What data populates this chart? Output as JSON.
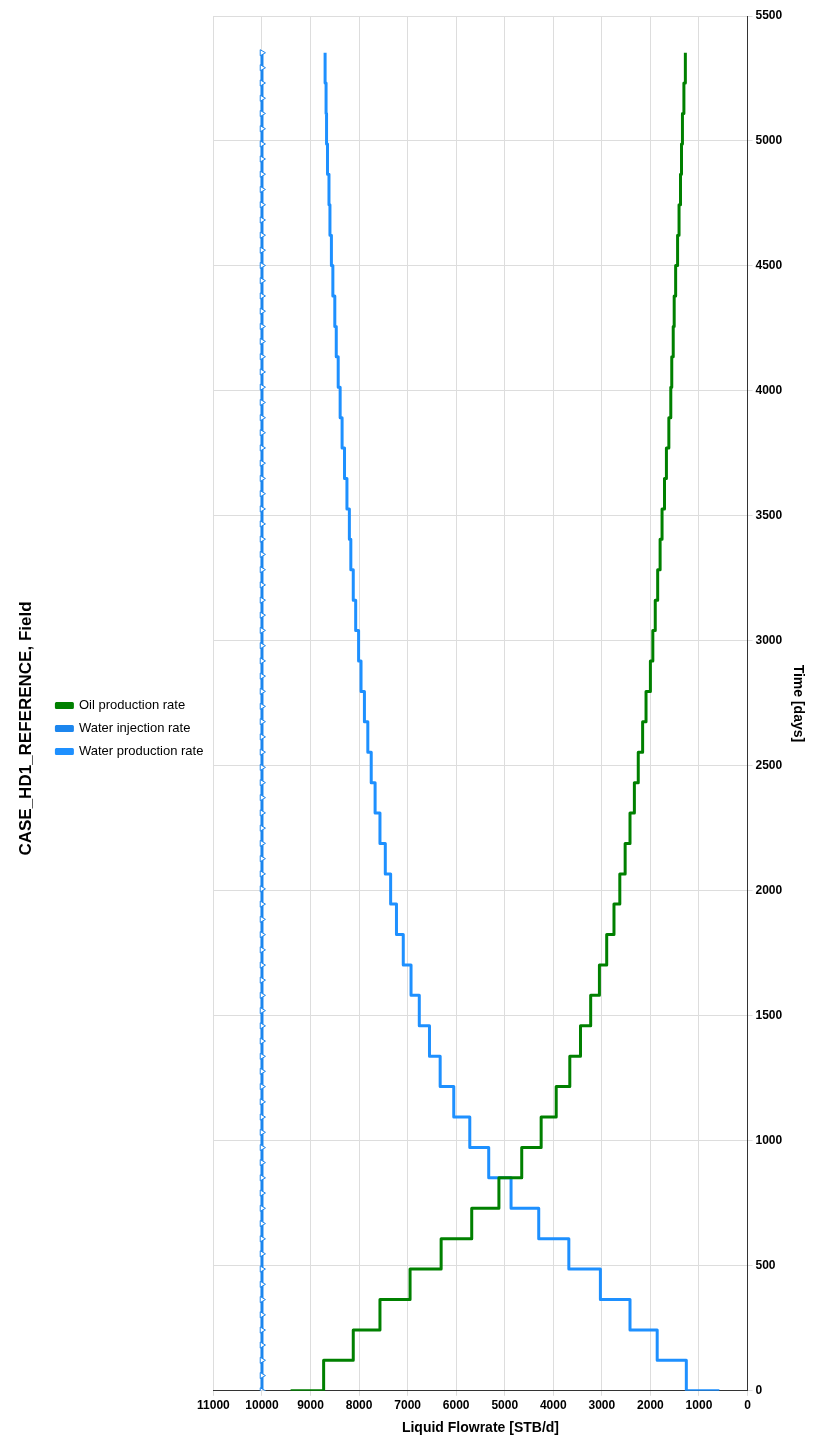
{
  "chart_data": {
    "type": "step",
    "title": "CASE_HD1_REFERENCE, Field",
    "xlabel": "Liquid Flowrate [STB/d]",
    "ylabel": "Time [days]",
    "orientation": "horizontal",
    "xlim": [
      11000,
      0
    ],
    "xticks": [
      0,
      1000,
      2000,
      3000,
      4000,
      5000,
      6000,
      7000,
      8000,
      9000,
      10000,
      11000
    ],
    "ylim": [
      0,
      5500
    ],
    "yticks": [
      0,
      500,
      1000,
      1500,
      2000,
      2500,
      3000,
      3500,
      4000,
      4500,
      5000,
      5500
    ],
    "grid": true,
    "legend": "left",
    "series": [
      {
        "name": "Oil production rate",
        "color": "#008000",
        "marker": "none",
        "x": [
          0,
          0,
          122,
          243,
          365,
          487,
          608,
          730,
          852,
          973,
          1095,
          1217,
          1338,
          1460,
          1582,
          1703,
          1825,
          1947,
          2068,
          2190,
          2312,
          2433,
          2555,
          2677,
          2798,
          2920,
          3042,
          3163,
          3285,
          3407,
          3528,
          3650,
          3772,
          3893,
          4015,
          4137,
          4258,
          4380,
          4502,
          4623,
          4745,
          4867,
          4988,
          5110,
          5232,
          5353
        ],
        "values": [
          9410,
          8730,
          8120,
          7570,
          6950,
          6310,
          5680,
          5120,
          4650,
          4250,
          3940,
          3660,
          3440,
          3230,
          3050,
          2900,
          2750,
          2630,
          2520,
          2420,
          2330,
          2250,
          2160,
          2090,
          2000,
          1950,
          1900,
          1850,
          1800,
          1760,
          1710,
          1670,
          1620,
          1580,
          1560,
          1530,
          1510,
          1480,
          1440,
          1410,
          1380,
          1360,
          1340,
          1310,
          1280,
          1280
        ]
      },
      {
        "name": "Water injection rate",
        "color": "#1c86ee",
        "type": "line",
        "marker": "triangle",
        "x": [
          0,
          61,
          122,
          183,
          243,
          304,
          365,
          426,
          487,
          548,
          608,
          669,
          730,
          791,
          852,
          913,
          973,
          1034,
          1095,
          1156,
          1217,
          1278,
          1338,
          1399,
          1460,
          1521,
          1582,
          1643,
          1703,
          1764,
          1825,
          1886,
          1947,
          2008,
          2068,
          2129,
          2190,
          2251,
          2312,
          2373,
          2433,
          2494,
          2555,
          2616,
          2677,
          2738,
          2798,
          2859,
          2920,
          2981,
          3042,
          3103,
          3163,
          3224,
          3285,
          3346,
          3407,
          3468,
          3528,
          3589,
          3650,
          3711,
          3772,
          3833,
          3893,
          3954,
          4015,
          4076,
          4137,
          4198,
          4258,
          4319,
          4380,
          4441,
          4502,
          4563,
          4623,
          4684,
          4745,
          4806,
          4867,
          4928,
          4988,
          5049,
          5110,
          5171,
          5232,
          5293,
          5353
        ],
        "values": [
          10000,
          10000,
          10000,
          10000,
          10000,
          10000,
          10000,
          10000,
          10000,
          10000,
          10000,
          10000,
          10000,
          10000,
          10000,
          10000,
          10000,
          10000,
          10000,
          10000,
          10000,
          10000,
          10000,
          10000,
          10000,
          10000,
          10000,
          10000,
          10000,
          10000,
          10000,
          10000,
          10000,
          10000,
          10000,
          10000,
          10000,
          10000,
          10000,
          10000,
          10000,
          10000,
          10000,
          10000,
          10000,
          10000,
          10000,
          10000,
          10000,
          10000,
          10000,
          10000,
          10000,
          10000,
          10000,
          10000,
          10000,
          10000,
          10000,
          10000,
          10000,
          10000,
          10000,
          10000,
          10000,
          10000,
          10000,
          10000,
          10000,
          10000,
          10000,
          10000,
          10000,
          10000,
          10000,
          10000,
          10000,
          10000,
          10000,
          10000,
          10000,
          10000,
          10000,
          10000,
          10000,
          10000,
          10000,
          10000,
          10000
        ]
      },
      {
        "name": "Water production rate",
        "color": "#1e90ff",
        "marker": "none",
        "x": [
          0,
          0,
          122,
          243,
          365,
          487,
          608,
          730,
          852,
          973,
          1095,
          1217,
          1338,
          1460,
          1582,
          1703,
          1825,
          1947,
          2068,
          2190,
          2312,
          2433,
          2555,
          2677,
          2798,
          2920,
          3042,
          3163,
          3285,
          3407,
          3528,
          3650,
          3772,
          3893,
          4015,
          4137,
          4258,
          4380,
          4502,
          4623,
          4745,
          4867,
          4988,
          5110,
          5232,
          5353
        ],
        "values": [
          580,
          1260,
          1860,
          2420,
          3030,
          3680,
          4300,
          4870,
          5330,
          5720,
          6050,
          6330,
          6550,
          6760,
          6930,
          7090,
          7230,
          7350,
          7460,
          7570,
          7670,
          7750,
          7820,
          7890,
          7960,
          8010,
          8070,
          8120,
          8170,
          8200,
          8250,
          8300,
          8350,
          8390,
          8430,
          8470,
          8500,
          8540,
          8570,
          8600,
          8620,
          8650,
          8670,
          8680,
          8700,
          8700
        ]
      }
    ]
  }
}
